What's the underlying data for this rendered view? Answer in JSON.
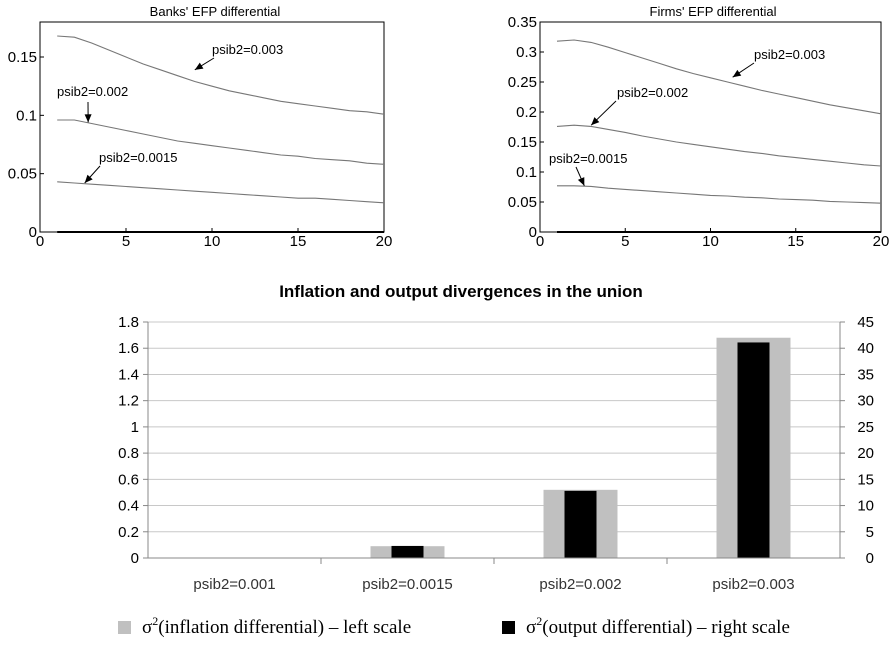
{
  "chart_data": [
    {
      "type": "line",
      "title": "Banks' EFP differential",
      "xlim": [
        0,
        20
      ],
      "ylim": [
        0,
        0.18
      ],
      "xticks": [
        0,
        5,
        10,
        15,
        20
      ],
      "yticks": [
        0,
        0.05,
        0.1,
        0.15
      ],
      "ytick_labels": [
        "0",
        "0.05",
        "0.1",
        "0.15"
      ],
      "x": [
        1,
        2,
        3,
        4,
        5,
        6,
        7,
        8,
        9,
        10,
        11,
        12,
        13,
        14,
        15,
        16,
        17,
        18,
        19,
        20
      ],
      "series": [
        {
          "values": [
            0.168,
            0.167,
            0.162,
            0.156,
            0.15,
            0.144,
            0.139,
            0.134,
            0.129,
            0.125,
            0.121,
            0.118,
            0.115,
            0.112,
            0.11,
            0.108,
            0.106,
            0.104,
            0.103,
            0.101
          ]
        },
        {
          "values": [
            0.096,
            0.096,
            0.093,
            0.09,
            0.087,
            0.084,
            0.081,
            0.078,
            0.076,
            0.074,
            0.072,
            0.07,
            0.068,
            0.066,
            0.065,
            0.063,
            0.062,
            0.061,
            0.059,
            0.058
          ]
        },
        {
          "values": [
            0.043,
            0.042,
            0.041,
            0.04,
            0.039,
            0.038,
            0.037,
            0.036,
            0.035,
            0.034,
            0.033,
            0.032,
            0.031,
            0.03,
            0.029,
            0.029,
            0.028,
            0.027,
            0.026,
            0.025
          ]
        },
        {
          "values": [
            0,
            0,
            0,
            0,
            0,
            0,
            0,
            0,
            0,
            0,
            0,
            0,
            0,
            0,
            0,
            0,
            0,
            0,
            0,
            0
          ]
        }
      ],
      "annotations": [
        {
          "text": "psib2=0.003",
          "x": 9.0,
          "y": 0.139
        },
        {
          "text": "psib2=0.002",
          "x": 2.8,
          "y": 0.094
        },
        {
          "text": "psib2=0.0015",
          "x": 2.6,
          "y": 0.042
        }
      ]
    },
    {
      "type": "line",
      "title": "Firms' EFP differential",
      "xlim": [
        0,
        20
      ],
      "ylim": [
        0,
        0.35
      ],
      "xticks": [
        0,
        5,
        10,
        15,
        20
      ],
      "yticks": [
        0,
        0.05,
        0.1,
        0.15,
        0.2,
        0.25,
        0.3,
        0.35
      ],
      "ytick_labels": [
        "0",
        "0.05",
        "0.1",
        "0.15",
        "0.2",
        "0.25",
        "0.3",
        "0.35"
      ],
      "x": [
        1,
        2,
        3,
        4,
        5,
        6,
        7,
        8,
        9,
        10,
        11,
        12,
        13,
        14,
        15,
        16,
        17,
        18,
        19,
        20
      ],
      "series": [
        {
          "values": [
            0.318,
            0.32,
            0.316,
            0.308,
            0.299,
            0.29,
            0.281,
            0.272,
            0.264,
            0.257,
            0.25,
            0.243,
            0.236,
            0.23,
            0.224,
            0.218,
            0.212,
            0.207,
            0.202,
            0.197
          ]
        },
        {
          "values": [
            0.176,
            0.178,
            0.176,
            0.171,
            0.166,
            0.16,
            0.155,
            0.15,
            0.146,
            0.142,
            0.138,
            0.134,
            0.131,
            0.127,
            0.124,
            0.121,
            0.118,
            0.115,
            0.112,
            0.11
          ]
        },
        {
          "values": [
            0.077,
            0.077,
            0.076,
            0.073,
            0.071,
            0.069,
            0.067,
            0.065,
            0.063,
            0.061,
            0.06,
            0.058,
            0.057,
            0.055,
            0.054,
            0.053,
            0.051,
            0.05,
            0.049,
            0.048
          ]
        },
        {
          "values": [
            0,
            0,
            0,
            0,
            0,
            0,
            0,
            0,
            0,
            0,
            0,
            0,
            0,
            0,
            0,
            0,
            0,
            0,
            0,
            0
          ]
        }
      ],
      "annotations": [
        {
          "text": "psib2=0.003",
          "x": 11.3,
          "y": 0.258
        },
        {
          "text": "psib2=0.002",
          "x": 3.0,
          "y": 0.178
        },
        {
          "text": "psib2=0.0015",
          "x": 2.6,
          "y": 0.077
        }
      ]
    },
    {
      "type": "bar",
      "title": "Inflation and output divergences in the union",
      "categories": [
        "psib2=0.001",
        "psib2=0.0015",
        "psib2=0.002",
        "psib2=0.003"
      ],
      "ylim_left": [
        0,
        1.8
      ],
      "ylim_right": [
        0,
        45
      ],
      "yticks_left": [
        "0",
        "0.2",
        "0.4",
        "0.6",
        "0.8",
        "1",
        "1.2",
        "1.4",
        "1.6",
        "1.8"
      ],
      "yticks_right": [
        "0",
        "5",
        "10",
        "15",
        "20",
        "25",
        "30",
        "35",
        "40",
        "45"
      ],
      "gridlines": true,
      "legend_position": "bottom",
      "series": [
        {
          "name": "σ²(inflation differential) – left scale",
          "axis": "left",
          "color": "#c0c0c0",
          "values": [
            0,
            0.09,
            0.52,
            1.68
          ]
        },
        {
          "name": "σ²(output differential) – right scale",
          "axis": "right",
          "color": "#000000",
          "values": [
            0,
            2.3,
            12.8,
            41.1
          ]
        }
      ],
      "legend": [
        {
          "sigma": "σ",
          "sup": "2",
          "rest": "(inflation differential) – left scale",
          "color": "#c0c0c0"
        },
        {
          "sigma": "σ",
          "sup": "2",
          "rest": "(output differential) – right scale",
          "color": "#000000"
        }
      ]
    }
  ]
}
